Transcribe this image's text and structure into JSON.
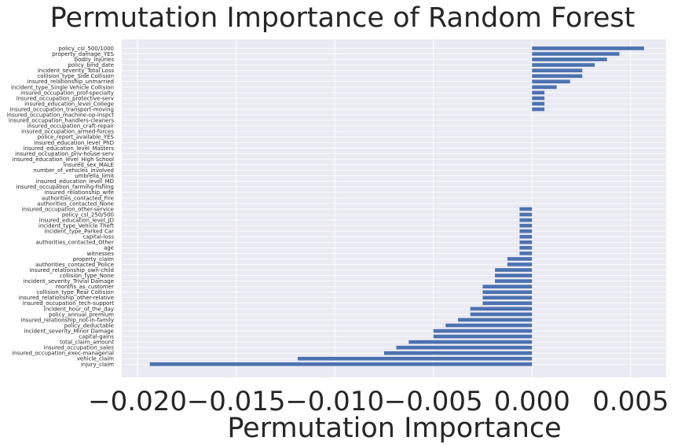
{
  "chart_data": {
    "type": "bar",
    "orientation": "horizontal",
    "title": "Permutation Importance of Random Forest",
    "xlabel": "Permutation Importance",
    "ylabel": "",
    "xlim": [
      -0.0208,
      0.0068
    ],
    "xticks": [
      -0.02,
      -0.015,
      -0.01,
      -0.005,
      0.0,
      0.005
    ],
    "xtick_labels": [
      "−0.020",
      "−0.015",
      "−0.010",
      "−0.005",
      "0.000",
      "0.005"
    ],
    "grid": true,
    "style": {
      "background": "#eaeaf2",
      "bar_color": "#4c72b0",
      "grid_color": "#ffffff"
    },
    "categories": [
      "policy_csl_500/1000",
      "property_damage_YES",
      "bodily_injuries",
      "policy_bind_date",
      "incident_severity_Total Loss",
      "collision_type_Side Collision",
      "insured_relationship_unmarried",
      "incident_type_Single Vehicle Collision",
      "insured_occupation_prof-specialty",
      "insured_occupation_protective-serv",
      "insured_education_level_College",
      "insured_occupation_transport-moving",
      "insured_occupation_machine-op-inspct",
      "insured_occupation_handlers-cleaners",
      "insured_occupation_craft-repair",
      "insured_occupation_armed-forces",
      "police_report_available_YES",
      "insured_education_level_PhD",
      "insured_education_level_Masters",
      "insured_occupation_priv-house-serv",
      "insured_education_level_High School",
      "insured_sex_MALE",
      "number_of_vehicles_involved",
      "umbrella_limit",
      "insured_education_level_MD",
      "insured_occupation_farming-fishing",
      "insured_relationship_wife",
      "authorities_contacted_Fire",
      "authorities_contacted_None",
      "insured_occupation_other-service",
      "policy_csl_250/500",
      "insured_education_level_JD",
      "incident_type_Vehicle Theft",
      "incident_type_Parked Car",
      "capital-loss",
      "authorities_contacted_Other",
      "age",
      "witnesses",
      "property_claim",
      "authorities_contacted_Police",
      "insured_relationship_own-child",
      "collision_type_None",
      "incident_severity_Trivial Damage",
      "months_as_customer",
      "collision_type_Rear Collision",
      "insured_relationship_other-relative",
      "insured_occupation_tech-support",
      "incident_hour_of_the_day",
      "policy_annual_premium",
      "insured_relationship_not-in-family",
      "policy_deductable",
      "incident_severity_Minor Damage",
      "capital-gains",
      "total_claim_amount",
      "insured_occupation_sales",
      "insured_occupation_exec-managerial",
      "vehicle_claim",
      "injury_claim"
    ],
    "values": [
      0.00568,
      0.00443,
      0.0038,
      0.00318,
      0.00255,
      0.00255,
      0.00193,
      0.00125,
      0.00063,
      0.00063,
      0.00063,
      0.00063,
      0,
      0,
      0,
      0,
      0,
      0,
      0,
      0,
      0,
      0,
      0,
      0,
      0,
      0,
      0,
      0,
      0,
      -0.00063,
      -0.00063,
      -0.00063,
      -0.00063,
      -0.00063,
      -0.00063,
      -0.00063,
      -0.00063,
      -0.00063,
      -0.00125,
      -0.00125,
      -0.00188,
      -0.00188,
      -0.00188,
      -0.0025,
      -0.0025,
      -0.0025,
      -0.0025,
      -0.00313,
      -0.00313,
      -0.00375,
      -0.00438,
      -0.005,
      -0.005,
      -0.00625,
      -0.00688,
      -0.0075,
      -0.01188,
      -0.01938
    ]
  }
}
